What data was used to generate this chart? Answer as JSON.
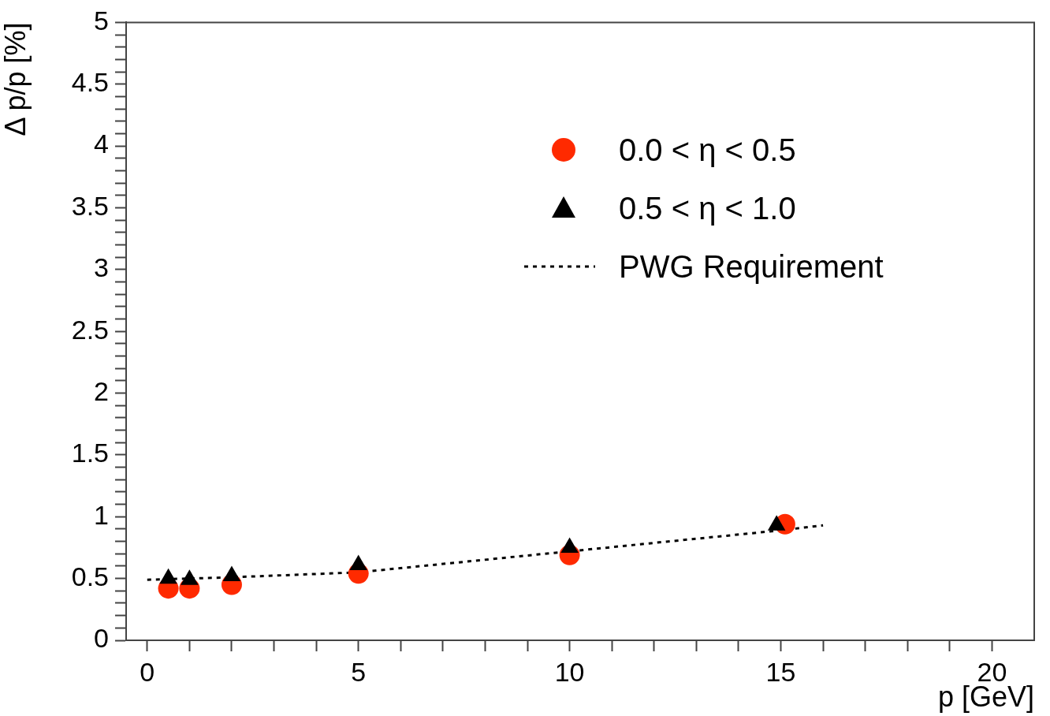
{
  "chart_data": {
    "type": "scatter",
    "xlabel": "p [GeV]",
    "ylabel": "Δ p/p [%]",
    "xlim": [
      -0.5,
      21
    ],
    "ylim": [
      0,
      5
    ],
    "xticks": [
      0,
      {
        "value": 1,
        "label": null
      },
      {
        "value": 2,
        "label": null
      },
      {
        "value": 3,
        "label": null
      },
      {
        "value": 4,
        "label": null
      },
      5,
      {
        "value": 6,
        "label": null
      },
      {
        "value": 7,
        "label": null
      },
      {
        "value": 8,
        "label": null
      },
      {
        "value": 9,
        "label": null
      },
      10,
      {
        "value": 11,
        "label": null
      },
      {
        "value": 12,
        "label": null
      },
      {
        "value": 13,
        "label": null
      },
      {
        "value": 14,
        "label": null
      },
      15,
      {
        "value": 16,
        "label": null
      },
      {
        "value": 17,
        "label": null
      },
      {
        "value": 18,
        "label": null
      },
      {
        "value": 19,
        "label": null
      },
      20
    ],
    "yticks": [
      0,
      {
        "value": 0.1,
        "label": null
      },
      {
        "value": 0.2,
        "label": null
      },
      {
        "value": 0.3,
        "label": null
      },
      {
        "value": 0.4,
        "label": null
      },
      0.5,
      {
        "value": 0.6,
        "label": null
      },
      {
        "value": 0.7,
        "label": null
      },
      {
        "value": 0.8,
        "label": null
      },
      {
        "value": 0.9,
        "label": null
      },
      1,
      {
        "value": 1.1,
        "label": null
      },
      {
        "value": 1.2,
        "label": null
      },
      {
        "value": 1.3,
        "label": null
      },
      {
        "value": 1.4,
        "label": null
      },
      1.5,
      {
        "value": 1.6,
        "label": null
      },
      {
        "value": 1.7,
        "label": null
      },
      {
        "value": 1.8,
        "label": null
      },
      {
        "value": 1.9,
        "label": null
      },
      2,
      {
        "value": 2.1,
        "label": null
      },
      {
        "value": 2.2,
        "label": null
      },
      {
        "value": 2.3,
        "label": null
      },
      {
        "value": 2.4,
        "label": null
      },
      2.5,
      {
        "value": 2.6,
        "label": null
      },
      {
        "value": 2.7,
        "label": null
      },
      {
        "value": 2.8,
        "label": null
      },
      {
        "value": 2.9,
        "label": null
      },
      3,
      {
        "value": 3.1,
        "label": null
      },
      {
        "value": 3.2,
        "label": null
      },
      {
        "value": 3.3,
        "label": null
      },
      {
        "value": 3.4,
        "label": null
      },
      3.5,
      {
        "value": 3.6,
        "label": null
      },
      {
        "value": 3.7,
        "label": null
      },
      {
        "value": 3.8,
        "label": null
      },
      {
        "value": 3.9,
        "label": null
      },
      4,
      {
        "value": 4.1,
        "label": null
      },
      {
        "value": 4.2,
        "label": null
      },
      {
        "value": 4.3,
        "label": null
      },
      {
        "value": 4.4,
        "label": null
      },
      4.5,
      {
        "value": 4.6,
        "label": null
      },
      {
        "value": 4.7,
        "label": null
      },
      {
        "value": 4.8,
        "label": null
      },
      {
        "value": 4.9,
        "label": null
      },
      5
    ],
    "grid": false,
    "legend": "top right",
    "series": [
      {
        "name": "0.0 < η < 0.5",
        "marker": "circle",
        "color": "#ff2a00",
        "x": [
          0.5,
          1,
          2,
          5,
          10,
          15.1
        ],
        "values": [
          0.42,
          0.42,
          0.45,
          0.54,
          0.69,
          0.94
        ]
      },
      {
        "name": "0.5 < η < 1.0",
        "marker": "triangle",
        "color": "#000000",
        "x": [
          0.5,
          1,
          2,
          5,
          10,
          14.9
        ],
        "values": [
          0.5,
          0.49,
          0.52,
          0.61,
          0.75,
          0.93
        ]
      },
      {
        "name": "PWG Requirement",
        "type": "line",
        "marker": "none",
        "line_style": "dotted",
        "color": "#000000",
        "x": [
          0,
          2,
          5,
          10,
          15,
          16
        ],
        "values": [
          0.49,
          0.51,
          0.55,
          0.72,
          0.89,
          0.93
        ]
      }
    ]
  }
}
